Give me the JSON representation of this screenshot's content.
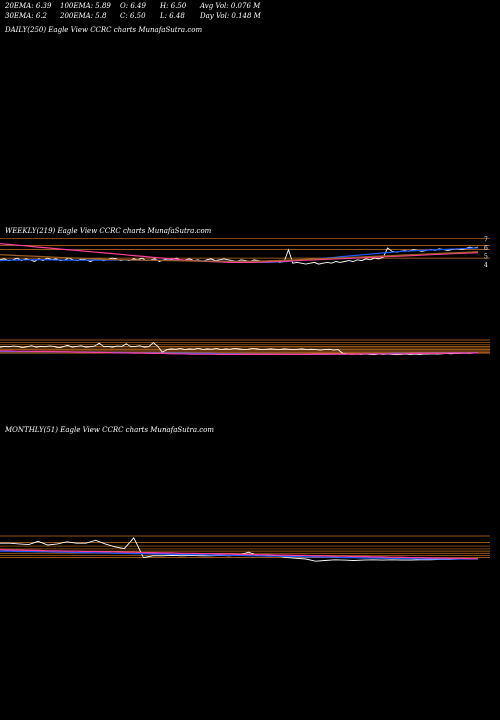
{
  "header": {
    "ema20": "20EMA: 6.39",
    "ema100": "100EMA: 5.89",
    "open": "O: 6.49",
    "high": "H: 6.50",
    "avg_vol": "Avg Vol: 0.076  M",
    "ema30": "30EMA: 6.2",
    "ema200": "200EMA: 5.8",
    "close": "C: 6.50",
    "low": "L: 6.48",
    "day_vol": "Day Vol: 0.148  M"
  },
  "panels": {
    "daily": "DAILY(250) Eagle   View  CCRC charts MunafaSutra.com",
    "weekly": "WEEKLY(219) Eagle   View  CCRC charts MunafaSutra.com",
    "monthly": "MONTHLY(51) Eagle   View  CCRC charts MunafaSutra.com"
  },
  "colors": {
    "price": "#ffffff",
    "ema_short": "#1e5cff",
    "ema_long": "#ff3fa0",
    "ema_mid": "#a06020",
    "level": "#c87020"
  },
  "chart_data": [
    {
      "type": "line",
      "panel": "weekly-price",
      "y_ticks": [
        "7",
        "6",
        "5",
        "4"
      ],
      "y_tick_values": [
        7,
        6,
        5,
        4
      ],
      "ylim": [
        3.4,
        7.4
      ],
      "series": [
        {
          "role": "price",
          "values": [
            4.6,
            4.7,
            4.5,
            4.6,
            4.8,
            4.5,
            4.7,
            4.6,
            4.4,
            4.7,
            4.5,
            4.8,
            4.6,
            4.7,
            4.5,
            4.6,
            4.8,
            4.6,
            4.5,
            4.7,
            4.6,
            4.4,
            4.6,
            4.7,
            4.5,
            4.6,
            4.8,
            4.7,
            4.5,
            4.6,
            4.5,
            4.7,
            4.6,
            4.8,
            4.5,
            4.6,
            4.7,
            4.4,
            4.6,
            4.7,
            4.6,
            4.8,
            4.5,
            4.6,
            4.7,
            4.5,
            4.6,
            4.4,
            4.6,
            4.7,
            4.5,
            4.6,
            4.7,
            4.6,
            4.5,
            4.4,
            4.6,
            4.5,
            4.4,
            4.6,
            4.5,
            4.4,
            4.3,
            4.5,
            4.4,
            4.3,
            4.4,
            5.8,
            4.2,
            4.3,
            4.2,
            4.1,
            4.2,
            4.3,
            4.1,
            4.2,
            4.3,
            4.2,
            4.4,
            4.3,
            4.4,
            4.5,
            4.4,
            4.6,
            4.5,
            4.7,
            4.6,
            4.8,
            4.7,
            4.9,
            6.0,
            5.6,
            5.5,
            5.6,
            5.7,
            5.6,
            5.8,
            5.7,
            5.6,
            5.7,
            5.8,
            5.7,
            5.9,
            5.8,
            5.7,
            5.8,
            5.9,
            5.8,
            5.9,
            6.1,
            6.0,
            6.1
          ]
        },
        {
          "role": "ema-short",
          "values": [
            4.5,
            4.55,
            4.58,
            4.6,
            4.62,
            4.6,
            4.58,
            4.56,
            4.55,
            4.55,
            4.56,
            4.57,
            4.58,
            4.58,
            4.57,
            4.56,
            4.55,
            4.54,
            4.53,
            4.52,
            4.5,
            4.48,
            4.46,
            4.44,
            4.42,
            4.4,
            4.35,
            4.32,
            4.3,
            4.35,
            4.4,
            4.5,
            4.6,
            4.7,
            4.8,
            4.9,
            5.0,
            5.1,
            5.2,
            5.3,
            5.4,
            5.5,
            5.6,
            5.65,
            5.7,
            5.75,
            5.8,
            5.85,
            5.9,
            5.95,
            6.0
          ]
        },
        {
          "role": "ema-long",
          "values": [
            6.5,
            6.4,
            6.3,
            6.2,
            6.1,
            6.0,
            5.9,
            5.8,
            5.7,
            5.6,
            5.5,
            5.4,
            5.3,
            5.2,
            5.1,
            5.0,
            4.9,
            4.8,
            4.7,
            4.6,
            4.5,
            4.45,
            4.4,
            4.35,
            4.3,
            4.3,
            4.3,
            4.32,
            4.35,
            4.4,
            4.45,
            4.5,
            4.55,
            4.6,
            4.65,
            4.7,
            4.75,
            4.8,
            4.85,
            4.9,
            4.95,
            5.0,
            5.05,
            5.1,
            5.15,
            5.2,
            5.25,
            5.3,
            5.35,
            5.4,
            5.45
          ]
        },
        {
          "role": "ema-mid",
          "values": [
            5.2,
            5.15,
            5.1,
            5.05,
            5.0,
            4.95,
            4.9,
            4.85,
            4.8,
            4.75,
            4.7,
            4.65,
            4.62,
            4.6,
            4.58,
            4.56,
            4.54,
            4.52,
            4.5,
            4.48,
            4.46,
            4.45,
            4.44,
            4.43,
            4.42,
            4.42,
            4.43,
            4.45,
            4.48,
            4.52,
            4.56,
            4.6,
            4.65,
            4.7,
            4.75,
            4.8,
            4.85,
            4.9,
            4.95,
            5.0,
            5.05,
            5.1,
            5.15,
            5.2,
            5.25,
            5.3,
            5.35,
            5.4,
            5.45,
            5.5,
            5.55
          ]
        }
      ],
      "levels": [
        7.1,
        6.3,
        5.8,
        4.8
      ]
    },
    {
      "type": "line",
      "panel": "weekly-indicator",
      "ylim": [
        0,
        100
      ],
      "series": [
        {
          "role": "price",
          "values": [
            78,
            80,
            79,
            81,
            80,
            77,
            79,
            82,
            78,
            80,
            79,
            81,
            80,
            76,
            79,
            83,
            78,
            80,
            82,
            78,
            79,
            81,
            90,
            79,
            80,
            78,
            81,
            80,
            88,
            79,
            80,
            82,
            78,
            79,
            92,
            80,
            62,
            70,
            72,
            71,
            73,
            70,
            72,
            71,
            74,
            70,
            72,
            71,
            73,
            70,
            72,
            71,
            73,
            72,
            70,
            71,
            73,
            72,
            70,
            71,
            72,
            71,
            70,
            72,
            71,
            70,
            71,
            72,
            70,
            71,
            70,
            69,
            70,
            71,
            69,
            70,
            58,
            57,
            55,
            56,
            55,
            56,
            55,
            54,
            56,
            55,
            56,
            55,
            54,
            55,
            56,
            55,
            56,
            55,
            56,
            56,
            57,
            56,
            57,
            58,
            57,
            58,
            58,
            59,
            58,
            59,
            59
          ]
        },
        {
          "role": "ema-short",
          "values": [
            64,
            64,
            64,
            64,
            64,
            63,
            63,
            63,
            62,
            62,
            62,
            61,
            61,
            61,
            60,
            60,
            60,
            59,
            59,
            59,
            58,
            58,
            58,
            57,
            57,
            57,
            56,
            56,
            56,
            55,
            55,
            55,
            55,
            55,
            55,
            56,
            56,
            56,
            57,
            57,
            57,
            58,
            58,
            58,
            59,
            59,
            59,
            60,
            60,
            60,
            60
          ]
        },
        {
          "role": "ema-long",
          "values": [
            66,
            66,
            65,
            65,
            64,
            64,
            63,
            63,
            62,
            62,
            61,
            61,
            60,
            60,
            59,
            59,
            58,
            58,
            57,
            57,
            56,
            56,
            56,
            55,
            55,
            55,
            55,
            55,
            55,
            55,
            55,
            55,
            55,
            56,
            56,
            56,
            56,
            56,
            57,
            57,
            57,
            57,
            57,
            58,
            58,
            58,
            58,
            59,
            59,
            59,
            60
          ]
        }
      ],
      "levels": [
        100,
        92,
        85,
        80,
        75,
        70,
        66,
        62,
        59
      ]
    },
    {
      "type": "line",
      "panel": "monthly-indicator",
      "ylim": [
        0,
        100
      ],
      "series": [
        {
          "role": "price",
          "values": [
            80,
            80,
            78,
            76,
            85,
            75,
            78,
            84,
            80,
            80,
            88,
            78,
            70,
            65,
            95,
            40,
            45,
            45,
            46,
            45,
            46,
            45,
            45,
            46,
            45,
            47,
            55,
            45,
            45,
            45,
            40,
            38,
            36,
            30,
            32,
            34,
            33,
            32,
            33,
            34,
            33,
            34,
            33,
            33,
            34,
            34,
            35,
            35,
            36,
            36,
            36
          ]
        },
        {
          "role": "ema-short",
          "values": [
            58,
            58,
            57,
            57,
            56,
            56,
            55,
            55,
            54,
            54,
            53,
            53,
            52,
            52,
            51,
            51,
            50,
            50,
            49,
            49,
            48,
            48,
            47,
            47,
            46,
            46,
            45,
            45,
            44,
            44,
            43,
            43,
            42,
            42,
            41,
            41,
            40,
            40,
            39,
            39,
            38,
            38,
            37,
            37,
            36,
            36,
            36,
            36,
            36,
            36,
            36
          ]
        },
        {
          "role": "ema-long",
          "values": [
            62,
            61,
            61,
            60,
            60,
            59,
            59,
            58,
            58,
            57,
            57,
            56,
            56,
            55,
            55,
            54,
            54,
            53,
            53,
            52,
            52,
            51,
            51,
            50,
            50,
            49,
            49,
            48,
            48,
            47,
            47,
            46,
            46,
            45,
            45,
            44,
            44,
            43,
            43,
            42,
            42,
            41,
            41,
            40,
            40,
            39,
            39,
            38,
            38,
            37,
            37
          ]
        }
      ],
      "levels": [
        100,
        82,
        72,
        64,
        58,
        52,
        46,
        40
      ]
    }
  ]
}
